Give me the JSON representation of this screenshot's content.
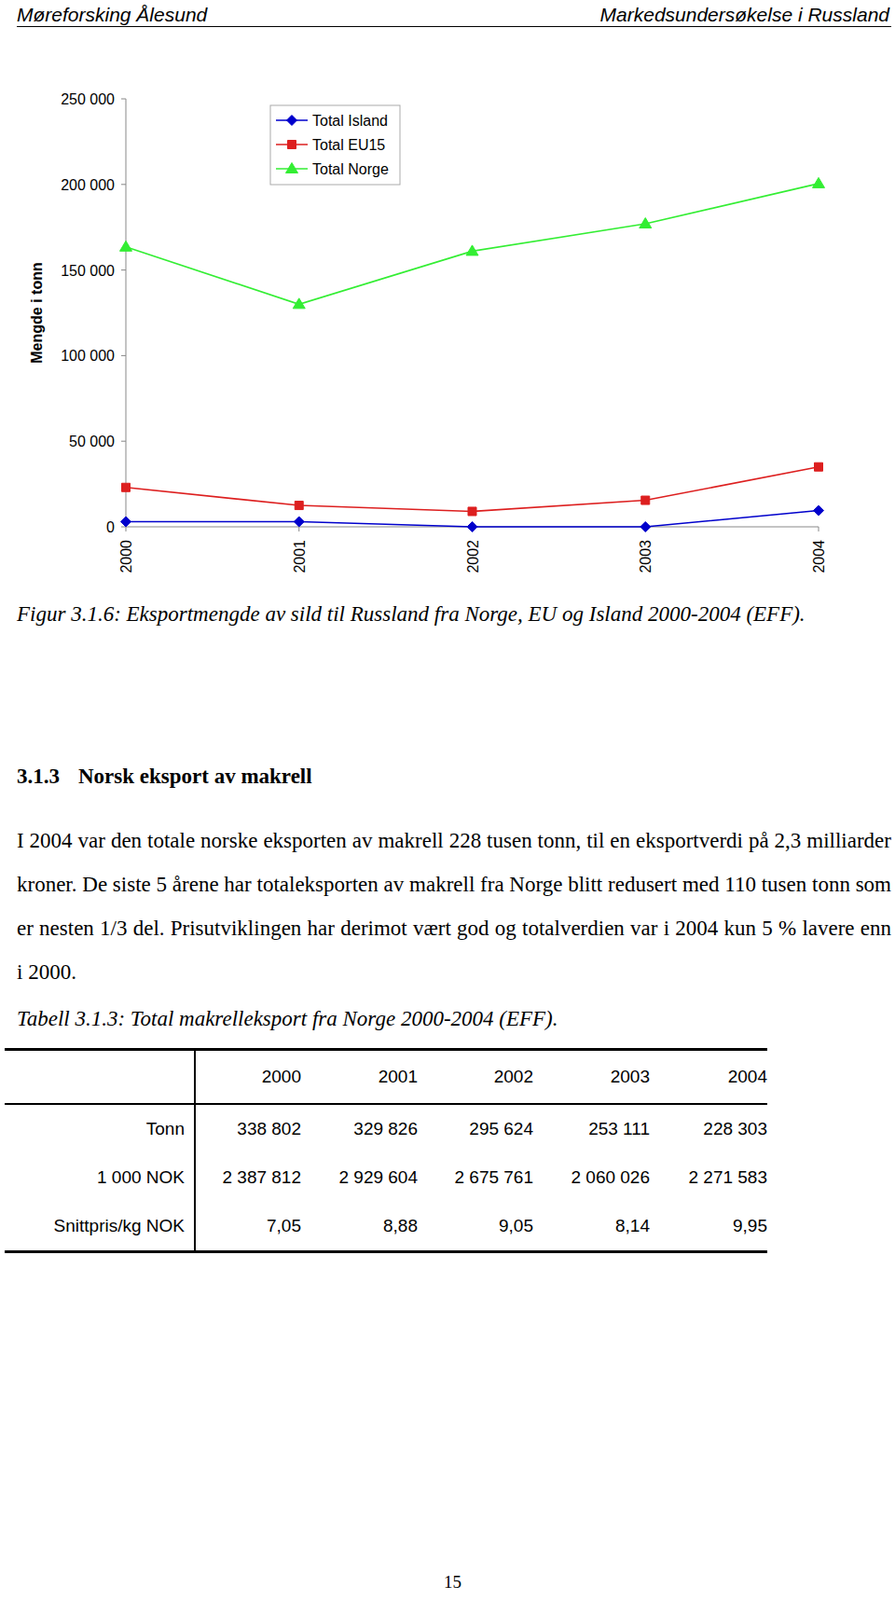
{
  "header": {
    "left": "Møreforsking Ålesund",
    "right": "Markedsundersøkelse i Russland"
  },
  "chart_data": {
    "type": "line",
    "y_label": "Mengde i tonn",
    "categories": [
      "2000",
      "2001",
      "2002",
      "2003",
      "2004"
    ],
    "series": [
      {
        "name": "Total Island",
        "color": "#0000cc",
        "marker": "diamond",
        "values": [
          3000,
          3000,
          0,
          0,
          9500
        ]
      },
      {
        "name": "Total EU15",
        "color": "#dd1f1f",
        "marker": "square",
        "values": [
          23000,
          12500,
          9000,
          15500,
          35000
        ]
      },
      {
        "name": "Total Norge",
        "color": "#33ee33",
        "marker": "triangle",
        "values": [
          163500,
          130000,
          161000,
          177000,
          200500
        ]
      }
    ],
    "ylim": [
      0,
      250000
    ],
    "yticks": [
      0,
      {
        "value": 50000,
        "label": "50 000"
      },
      {
        "value": 100000,
        "label": "100 000"
      },
      {
        "value": 150000,
        "label": "150 000"
      },
      {
        "value": 200000,
        "label": "200 000"
      },
      {
        "value": 250000,
        "label": "250 000"
      }
    ],
    "grid": false,
    "legend": "top"
  },
  "figure_caption": "Figur 3.1.6: Eksportmengde av sild til Russland fra Norge, EU og Island 2000-2004 (EFF).",
  "section": {
    "number": "3.1.3",
    "title": "Norsk eksport av makrell"
  },
  "paragraph": "I 2004 var den totale norske eksporten av makrell 228 tusen tonn, til en eksportverdi på 2,3 milliarder kroner. De siste 5 årene har totaleksporten av makrell fra Norge blitt redusert med 110 tusen tonn som er nesten 1/3 del. Prisutviklingen har derimot vært god og totalverdien var i 2004 kun 5 % lavere enn i 2000.",
  "table": {
    "caption": "Tabell 3.1.3: Total makrelleksport fra Norge 2000-2004 (EFF).",
    "columns": [
      "2000",
      "2001",
      "2002",
      "2003",
      "2004"
    ],
    "rows": [
      [
        "Tonn",
        "338 802",
        "329 826",
        "295 624",
        "253 111",
        "228 303"
      ],
      [
        "1 000 NOK",
        "2 387 812",
        "2 929 604",
        "2 675 761",
        "2 060 026",
        "2 271 583"
      ],
      [
        "Snittpris/kg NOK",
        "7,05",
        "8,88",
        "9,05",
        "8,14",
        "9,95"
      ]
    ]
  },
  "page_number": "15"
}
